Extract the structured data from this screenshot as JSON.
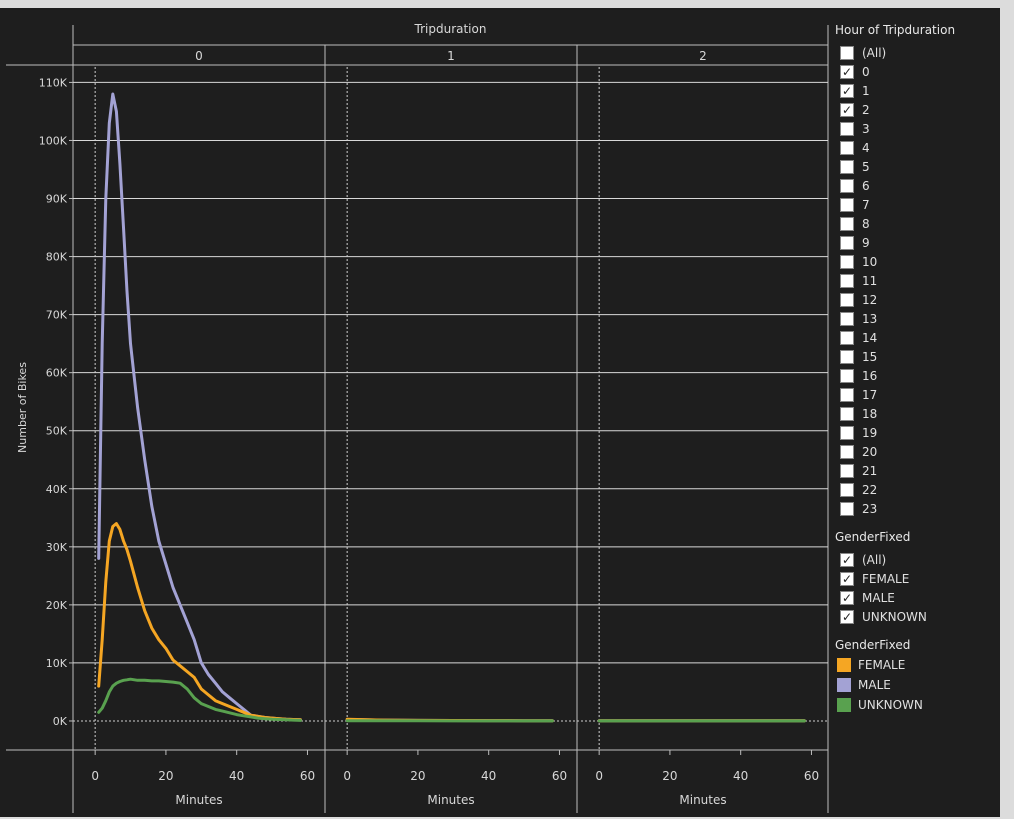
{
  "chart_data": {
    "type": "line",
    "column_header": "Tripduration",
    "panels": [
      "0",
      "1",
      "2"
    ],
    "ylabel": "Number of Bikes",
    "xlabel": "Minutes",
    "ylim": [
      -5000,
      113000
    ],
    "xlim": [
      -4,
      61
    ],
    "yticks": [
      0,
      10000,
      20000,
      30000,
      40000,
      50000,
      60000,
      70000,
      80000,
      90000,
      100000,
      110000
    ],
    "ytick_labels": [
      "0K",
      "10K",
      "20K",
      "30K",
      "40K",
      "50K",
      "60K",
      "70K",
      "80K",
      "90K",
      "100K",
      "110K"
    ],
    "xticks": [
      0,
      20,
      40,
      60
    ],
    "xtick_labels": [
      "0",
      "20",
      "40",
      "60"
    ],
    "grid": true,
    "series": [
      {
        "name": "MALE",
        "color": "#a3a2d4",
        "panel_values": [
          {
            "x": [
              1,
              2,
              3,
              4,
              5,
              6,
              7,
              8,
              9,
              10,
              12,
              14,
              16,
              18,
              20,
              22,
              24,
              26,
              28,
              30,
              32,
              34,
              36,
              38,
              40,
              42,
              44,
              46,
              48,
              50,
              52,
              54,
              56,
              58
            ],
            "y": [
              28000,
              65000,
              90000,
              103000,
              108000,
              105000,
              96000,
              85000,
              74000,
              65000,
              54000,
              45000,
              37000,
              31000,
              27000,
              23000,
              20000,
              17000,
              14000,
              10000,
              8000,
              6500,
              5000,
              4000,
              3000,
              2000,
              1000,
              800,
              600,
              500,
              400,
              300,
              250,
              200
            ]
          },
          {
            "x": [
              0,
              10,
              20,
              30,
              40,
              50,
              58
            ],
            "y": [
              250,
              150,
              100,
              80,
              60,
              50,
              40
            ]
          },
          {
            "x": [
              0,
              20,
              40,
              58
            ],
            "y": [
              40,
              30,
              30,
              30
            ]
          }
        ]
      },
      {
        "name": "FEMALE",
        "color": "#f5a623",
        "panel_values": [
          {
            "x": [
              1,
              2,
              3,
              4,
              5,
              6,
              7,
              8,
              9,
              10,
              12,
              14,
              16,
              18,
              20,
              22,
              24,
              26,
              28,
              30,
              32,
              34,
              36,
              38,
              40,
              42,
              44,
              46,
              48,
              50,
              52,
              54,
              56,
              58
            ],
            "y": [
              6000,
              14000,
              24000,
              31000,
              33500,
              34000,
              33000,
              31000,
              29500,
              27500,
              23000,
              19000,
              16000,
              14000,
              12500,
              10500,
              9500,
              8500,
              7500,
              5500,
              4500,
              3500,
              3000,
              2500,
              2000,
              1500,
              1000,
              800,
              600,
              500,
              400,
              300,
              250,
              200
            ]
          },
          {
            "x": [
              0,
              10,
              20,
              30,
              40,
              50,
              58
            ],
            "y": [
              300,
              150,
              100,
              80,
              60,
              50,
              40
            ]
          },
          {
            "x": [
              0,
              20,
              40,
              58
            ],
            "y": [
              40,
              30,
              30,
              30
            ]
          }
        ]
      },
      {
        "name": "UNKNOWN",
        "color": "#59a14f",
        "panel_values": [
          {
            "x": [
              1,
              2,
              3,
              4,
              5,
              6,
              7,
              8,
              9,
              10,
              12,
              14,
              16,
              18,
              20,
              22,
              24,
              26,
              28,
              30,
              32,
              34,
              36,
              38,
              40,
              42,
              44,
              46,
              48,
              50,
              52,
              54,
              56,
              58
            ],
            "y": [
              1500,
              2200,
              3500,
              5000,
              6000,
              6500,
              6800,
              7000,
              7100,
              7200,
              7000,
              7000,
              6900,
              6900,
              6800,
              6700,
              6500,
              5500,
              4000,
              3000,
              2500,
              2000,
              1700,
              1400,
              1100,
              900,
              700,
              500,
              400,
              300,
              250,
              200,
              150,
              100
            ]
          },
          {
            "x": [
              0,
              10,
              20,
              30,
              40,
              50,
              58
            ],
            "y": [
              50,
              40,
              30,
              20,
              20,
              20,
              20
            ]
          },
          {
            "x": [
              0,
              20,
              40,
              58
            ],
            "y": [
              10,
              10,
              10,
              10
            ]
          }
        ]
      }
    ]
  },
  "filters": {
    "hour": {
      "title": "Hour of Tripduration",
      "items": [
        {
          "label": "(All)",
          "checked": false
        },
        {
          "label": "0",
          "checked": true
        },
        {
          "label": "1",
          "checked": true
        },
        {
          "label": "2",
          "checked": true
        },
        {
          "label": "3",
          "checked": false
        },
        {
          "label": "4",
          "checked": false
        },
        {
          "label": "5",
          "checked": false
        },
        {
          "label": "6",
          "checked": false
        },
        {
          "label": "7",
          "checked": false
        },
        {
          "label": "8",
          "checked": false
        },
        {
          "label": "9",
          "checked": false
        },
        {
          "label": "10",
          "checked": false
        },
        {
          "label": "11",
          "checked": false
        },
        {
          "label": "12",
          "checked": false
        },
        {
          "label": "13",
          "checked": false
        },
        {
          "label": "14",
          "checked": false
        },
        {
          "label": "15",
          "checked": false
        },
        {
          "label": "16",
          "checked": false
        },
        {
          "label": "17",
          "checked": false
        },
        {
          "label": "18",
          "checked": false
        },
        {
          "label": "19",
          "checked": false
        },
        {
          "label": "20",
          "checked": false
        },
        {
          "label": "21",
          "checked": false
        },
        {
          "label": "22",
          "checked": false
        },
        {
          "label": "23",
          "checked": false
        }
      ]
    },
    "gender": {
      "title": "GenderFixed",
      "items": [
        {
          "label": "(All)",
          "checked": true
        },
        {
          "label": "FEMALE",
          "checked": true
        },
        {
          "label": "MALE",
          "checked": true
        },
        {
          "label": "UNKNOWN",
          "checked": true
        }
      ]
    }
  },
  "color_legend": {
    "title": "GenderFixed",
    "items": [
      {
        "label": "FEMALE",
        "color": "#f5a623"
      },
      {
        "label": "MALE",
        "color": "#a3a2d4"
      },
      {
        "label": "UNKNOWN",
        "color": "#59a14f"
      }
    ]
  },
  "check_glyph": "✓"
}
